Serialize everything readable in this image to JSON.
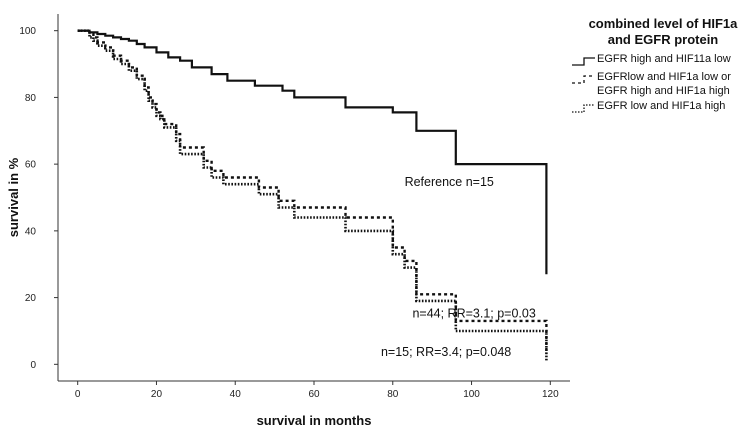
{
  "chart_data": {
    "type": "line",
    "xlabel": "survival in months",
    "ylabel": "survival in %",
    "xlim": [
      -5,
      125
    ],
    "ylim": [
      -5,
      105
    ],
    "xticks": [
      0,
      20,
      40,
      60,
      80,
      100,
      120
    ],
    "yticks": [
      0,
      20,
      40,
      60,
      80,
      100
    ],
    "grid": false,
    "legend": {
      "position": "top-right",
      "title_lines": [
        "combined level of HIF1a",
        "and EGFR protein"
      ],
      "entries": [
        {
          "lines": [
            "EGFR high and HIF11a low"
          ],
          "style": "solid"
        },
        {
          "lines": [
            "EGFRlow and HIF1a low or",
            "EGFR high and HIF1a high"
          ],
          "style": "dashed"
        },
        {
          "lines": [
            "EGFR low and HIF1a high"
          ],
          "style": "dotted"
        }
      ]
    },
    "series": [
      {
        "style": "solid",
        "x": [
          0,
          3,
          5,
          7,
          9,
          11,
          13,
          15,
          17,
          20,
          23,
          26,
          29,
          34,
          38,
          45,
          52,
          55,
          68,
          80,
          86,
          96,
          119,
          119
        ],
        "y": [
          100,
          99.5,
          99,
          98.5,
          98,
          97.5,
          97,
          96,
          95,
          93.5,
          92,
          91,
          89,
          87,
          85,
          83.5,
          82,
          80,
          77,
          75.5,
          70,
          60,
          51,
          27
        ]
      },
      {
        "style": "dashed",
        "x": [
          0,
          3,
          4,
          5,
          7,
          9,
          11,
          13,
          15,
          17,
          18,
          19,
          20,
          21,
          22,
          25,
          26,
          32,
          34,
          37,
          46,
          51,
          55,
          68,
          80,
          83,
          86,
          96,
          119
        ],
        "y": [
          100,
          99,
          98,
          96.5,
          95,
          92.5,
          91,
          89,
          86.5,
          83,
          80,
          78,
          75.5,
          74.5,
          72,
          69,
          65,
          61,
          58,
          56,
          53,
          49,
          47,
          44,
          35,
          31,
          21,
          13,
          3
        ]
      },
      {
        "style": "dotted",
        "x": [
          0,
          3,
          4,
          5,
          7,
          9,
          11,
          13,
          15,
          17,
          18,
          19,
          20,
          21,
          22,
          25,
          26,
          32,
          34,
          37,
          46,
          51,
          55,
          68,
          80,
          83,
          86,
          96,
          119
        ],
        "y": [
          100,
          98,
          97,
          95.5,
          94,
          91.5,
          90,
          88,
          85.5,
          82,
          79,
          77,
          74.5,
          73.5,
          71,
          67,
          63,
          59,
          56,
          54,
          51,
          47,
          44,
          40,
          33,
          29,
          19,
          10,
          1
        ]
      }
    ],
    "annotations": [
      {
        "text": "Reference n=15",
        "x": 83,
        "y": 53.5
      },
      {
        "text": "n=44; RR=3.1; p=0.03",
        "x": 85,
        "y": 14
      },
      {
        "text": "n=15; RR=3.4; p=0.048",
        "x": 77,
        "y": 2.5
      }
    ]
  }
}
